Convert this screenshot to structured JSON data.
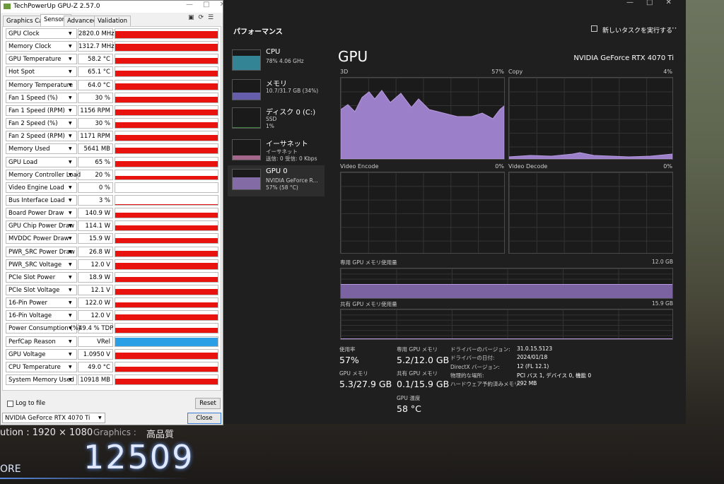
{
  "gpuz": {
    "title": "TechPowerUp GPU-Z 2.57.0",
    "tabs": [
      "Graphics Card",
      "Sensors",
      "Advanced",
      "Validation"
    ],
    "sensors": [
      {
        "label": "GPU Clock",
        "value": "2820.0 MHz"
      },
      {
        "label": "Memory Clock",
        "value": "1312.7 MHz"
      },
      {
        "label": "GPU Temperature",
        "value": "58.2 °C"
      },
      {
        "label": "Hot Spot",
        "value": "65.1 °C"
      },
      {
        "label": "Memory Temperature",
        "value": "64.0 °C"
      },
      {
        "label": "Fan 1 Speed (%)",
        "value": "30 %"
      },
      {
        "label": "Fan 1 Speed (RPM)",
        "value": "1156 RPM"
      },
      {
        "label": "Fan 2 Speed (%)",
        "value": "30 %"
      },
      {
        "label": "Fan 2 Speed (RPM)",
        "value": "1171 RPM"
      },
      {
        "label": "Memory Used",
        "value": "5641 MB"
      },
      {
        "label": "GPU Load",
        "value": "65 %"
      },
      {
        "label": "Memory Controller Load",
        "value": "20 %"
      },
      {
        "label": "Video Engine Load",
        "value": "0 %"
      },
      {
        "label": "Bus Interface Load",
        "value": "3 %"
      },
      {
        "label": "Board Power Draw",
        "value": "140.9 W"
      },
      {
        "label": "GPU Chip Power Draw",
        "value": "114.1 W"
      },
      {
        "label": "MVDDC Power Draw",
        "value": "15.9 W"
      },
      {
        "label": "PWR_SRC Power Draw",
        "value": "26.8 W"
      },
      {
        "label": "PWR_SRC Voltage",
        "value": "12.0 V"
      },
      {
        "label": "PCIe Slot Power",
        "value": "18.9 W"
      },
      {
        "label": "PCIe Slot Voltage",
        "value": "12.1 V"
      },
      {
        "label": "16-Pin Power",
        "value": "122.0 W"
      },
      {
        "label": "16-Pin Voltage",
        "value": "12.0 V"
      },
      {
        "label": "Power Consumption (%)",
        "value": "49.4 % TDP"
      },
      {
        "label": "PerfCap Reason",
        "value": "VRel"
      },
      {
        "label": "GPU Voltage",
        "value": "1.0950 V"
      },
      {
        "label": "CPU Temperature",
        "value": "49.0 °C"
      },
      {
        "label": "System Memory Used",
        "value": "10918 MB"
      }
    ],
    "log_to_file": "Log to file",
    "reset": "Reset",
    "device": "NVIDIA GeForce RTX 4070 Ti",
    "close": "Close"
  },
  "taskmanager": {
    "section": "パフォーマンス",
    "run_task": "新しいタスクを実行する",
    "sidebar": [
      {
        "name": "CPU",
        "lines": [
          "78% 4.06 GHz"
        ]
      },
      {
        "name": "メモリ",
        "lines": [
          "10.7/31.7 GB (34%)"
        ]
      },
      {
        "name": "ディスク 0 (C:)",
        "lines": [
          "SSD",
          "1%"
        ]
      },
      {
        "name": "イーサネット",
        "lines": [
          "イーサネット",
          "送信: 0 受信: 0 Kbps"
        ]
      },
      {
        "name": "GPU 0",
        "lines": [
          "NVIDIA GeForce R...",
          "57% (58 °C)"
        ]
      }
    ],
    "title": "GPU",
    "gpu_name": "NVIDIA GeForce RTX 4070 Ti",
    "graphs": [
      {
        "label": "3D",
        "value": "57%"
      },
      {
        "label": "Copy",
        "value": "4%"
      },
      {
        "label": "Video Encode",
        "value": "0%"
      },
      {
        "label": "Video Decode",
        "value": "0%"
      }
    ],
    "dedicated_label": "専用 GPU メモリ使用量",
    "dedicated_max": "12.0 GB",
    "shared_label": "共有 GPU メモリ使用量",
    "shared_max": "15.9 GB",
    "stats": [
      {
        "label": "使用率",
        "value": "57%"
      },
      {
        "label": "GPU メモリ",
        "value": "5.3/27.9 GB"
      },
      {
        "label": "専用 GPU メモリ",
        "value": "5.2/12.0 GB"
      },
      {
        "label": "共有 GPU メモリ",
        "value": "0.1/15.9 GB"
      },
      {
        "label": "GPU 温度",
        "value": "58 °C"
      }
    ],
    "details": [
      {
        "label": "ドライバーのバージョン:",
        "value": "31.0.15.5123"
      },
      {
        "label": "ドライバーの日付:",
        "value": "2024/01/18"
      },
      {
        "label": "DirectX バージョン:",
        "value": "12 (FL 12.1)"
      },
      {
        "label": "物理的な場所:",
        "value": "PCI バス 1, デバイス 0, 機能 0"
      },
      {
        "label": "ハードウェア予約済みメモリ:",
        "value": "292 MB"
      }
    ]
  },
  "background": {
    "resolution": "ution : 1920 × 1080",
    "graphics": "Graphics :",
    "quality": "高品質",
    "score": "12509",
    "score_label": "ORE"
  }
}
